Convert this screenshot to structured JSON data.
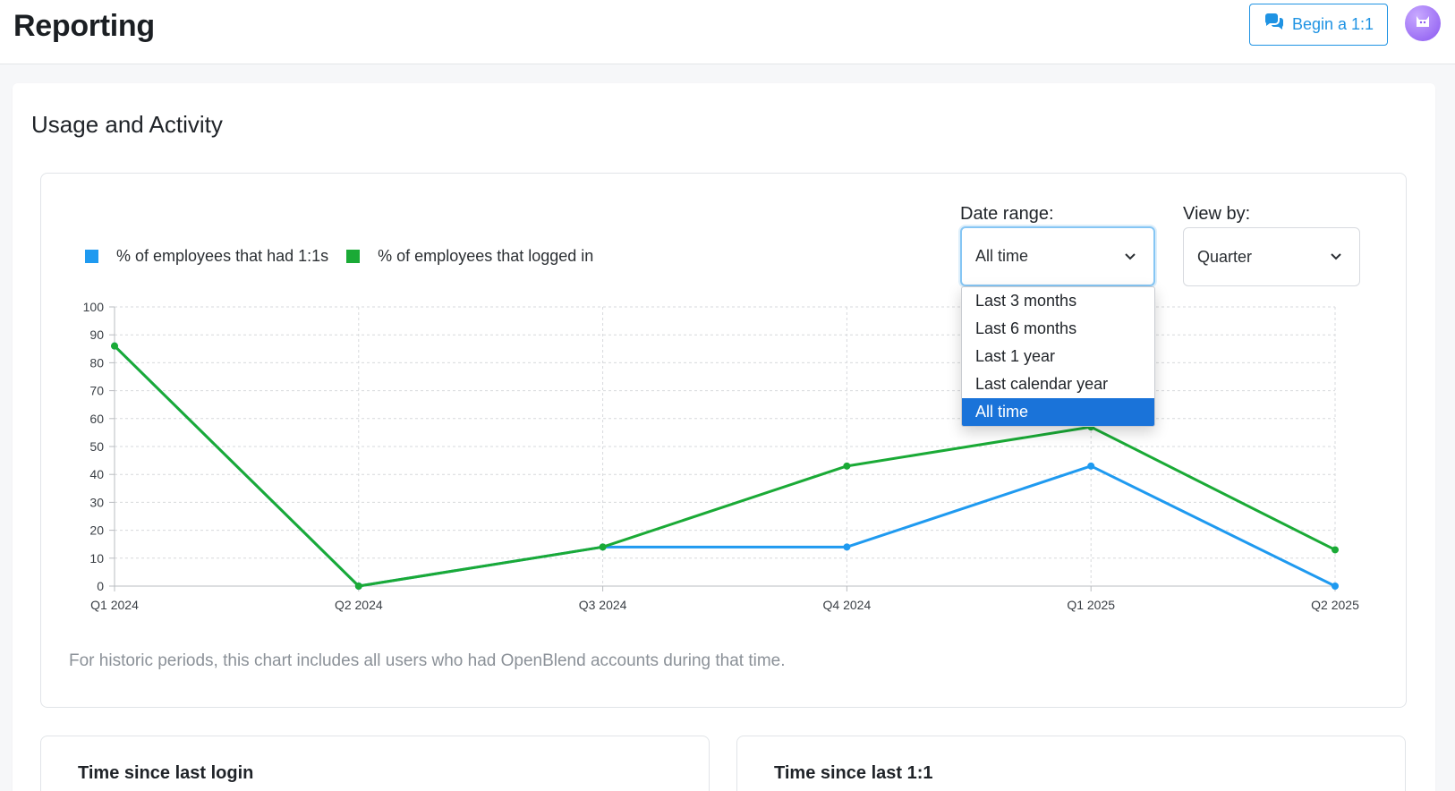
{
  "header": {
    "title": "Reporting",
    "begin_button": "Begin a 1:1"
  },
  "section": {
    "title": "Usage and Activity"
  },
  "controls": {
    "date_range_label": "Date range:",
    "date_range_value": "All time",
    "view_by_label": "View by:",
    "view_by_value": "Quarter",
    "date_range_options": [
      "Last 3 months",
      "Last 6 months",
      "Last 1 year",
      "Last calendar year",
      "All time"
    ],
    "date_range_selected_index": 4
  },
  "legend": {
    "items": [
      {
        "label": "% of employees that had 1:1s",
        "color": "#1f9af0"
      },
      {
        "label": "% of employees that logged in",
        "color": "#1aaa36"
      }
    ]
  },
  "chart_data": {
    "type": "line",
    "categories": [
      "Q1 2024",
      "Q2 2024",
      "Q3 2024",
      "Q4 2024",
      "Q1 2025",
      "Q2 2025"
    ],
    "series": [
      {
        "name": "% of employees that had 1:1s",
        "color": "#1f9af0",
        "values": [
          86,
          0,
          14,
          14,
          43,
          0
        ]
      },
      {
        "name": "% of employees that logged in",
        "color": "#1aaa36",
        "values": [
          86,
          0,
          14,
          43,
          57,
          13
        ]
      }
    ],
    "ylim": [
      0,
      100
    ],
    "yticks": [
      0,
      10,
      20,
      30,
      40,
      50,
      60,
      70,
      80,
      90,
      100
    ],
    "grid": true,
    "legend_position": "top-left"
  },
  "footnote": "For historic periods, this chart includes all users who had OpenBlend accounts during that time.",
  "cards": {
    "last_login_title": "Time since last login",
    "last_one_on_one_title": "Time since last 1:1"
  }
}
